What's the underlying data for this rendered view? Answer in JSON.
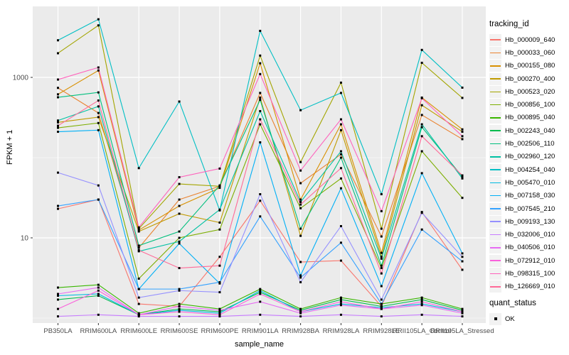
{
  "chart_data": {
    "type": "line",
    "title": "",
    "xlabel": "sample_name",
    "ylabel": "FPKM + 1",
    "y_scale": "log10",
    "ylim": [
      0.85,
      9000
    ],
    "grid": true,
    "panel_bg": "#EBEBEB",
    "grid_color": "#FFFFFF",
    "point_color": "#000000",
    "y_ticks": [
      {
        "label": "1000",
        "value": 1000
      },
      {
        "label": "10",
        "value": 10
      }
    ],
    "y_minor_breaks": [
      100,
      1
    ],
    "categories": [
      "PB350LA",
      "RRIM600LA",
      "RRIM600LE",
      "RRIM600SE",
      "RRIM600PE",
      "RRIM901LA",
      "RRIM928BA",
      "RRIM928LA",
      "RRIM928LE",
      "RRII105LA_Control",
      "RRII105LA_Stressed"
    ],
    "series": [
      {
        "name": "Hb_000009_640",
        "color": "#F8766D",
        "values": [
          23,
          30,
          1.5,
          1.4,
          5.8,
          29,
          5.0,
          5.2,
          1.4,
          21,
          4.0
        ]
      },
      {
        "name": "Hb_000033_060",
        "color": "#EA8331",
        "values": [
          740,
          360,
          7.5,
          30,
          44,
          640,
          48,
          110,
          10.4,
          340,
          170
        ]
      },
      {
        "name": "Hb_000155_080",
        "color": "#D89000",
        "values": [
          615,
          1220,
          12.5,
          25,
          42,
          1500,
          30,
          260,
          6.5,
          560,
          225
        ]
      },
      {
        "name": "Hb_000270_400",
        "color": "#C09B00",
        "values": [
          275,
          320,
          12,
          20,
          15.5,
          560,
          10.6,
          220,
          5.8,
          450,
          210
        ]
      },
      {
        "name": "Hb_000523_020",
        "color": "#A3A500",
        "values": [
          2000,
          4450,
          13,
          47,
          44,
          1870,
          88,
          860,
          13,
          1520,
          555
        ]
      },
      {
        "name": "Hb_000856_100",
        "color": "#7CAE00",
        "values": [
          235,
          270,
          3.1,
          10,
          12.7,
          260,
          23.4,
          55,
          4.2,
          120,
          31.5
        ]
      },
      {
        "name": "Hb_000895_040",
        "color": "#39B600",
        "values": [
          2.4,
          2.6,
          1.15,
          1.5,
          1.3,
          2.3,
          1.3,
          1.8,
          1.5,
          1.8,
          1.3
        ]
      },
      {
        "name": "Hb_002243_040",
        "color": "#00BB4E",
        "values": [
          1.7,
          1.9,
          1.1,
          1.3,
          1.2,
          2.1,
          1.25,
          1.7,
          1.4,
          1.7,
          1.25
        ]
      },
      {
        "name": "Hb_002506_110",
        "color": "#00BF7D",
        "values": [
          565,
          650,
          8,
          12,
          45,
          525,
          13,
          100,
          4.5,
          240,
          58
        ]
      },
      {
        "name": "Hb_002960_120",
        "color": "#00C1A3",
        "values": [
          290,
          435,
          6.8,
          9,
          22.5,
          380,
          28,
          120,
          5.5,
          260,
          55
        ]
      },
      {
        "name": "Hb_004254_040",
        "color": "#00BFC4",
        "values": [
          2900,
          5300,
          74,
          500,
          22,
          3800,
          390,
          640,
          35,
          2200,
          745
        ]
      },
      {
        "name": "Hb_005470_010",
        "color": "#00BAE0",
        "values": [
          1.9,
          2.0,
          1.1,
          1.25,
          1.15,
          2.2,
          1.2,
          1.5,
          1.35,
          1.5,
          1.2
        ]
      },
      {
        "name": "Hb_007158_030",
        "color": "#00B0F6",
        "values": [
          210,
          220,
          2.3,
          8.5,
          2.7,
          155,
          3.4,
          41.5,
          2.5,
          64,
          6.4
        ]
      },
      {
        "name": "Hb_007545_210",
        "color": "#35A2FF",
        "values": [
          25,
          30,
          2.3,
          2.3,
          2.8,
          18.5,
          3.2,
          8.7,
          1.5,
          12.7,
          5.1
        ]
      },
      {
        "name": "Hb_009193_130",
        "color": "#9590FF",
        "values": [
          65,
          45,
          1.8,
          2.2,
          2.1,
          35,
          2.8,
          14,
          1.7,
          20.5,
          5.8
        ]
      },
      {
        "name": "Hb_032006_010",
        "color": "#C77CFF",
        "values": [
          1.05,
          1.1,
          1.05,
          1.05,
          1.05,
          1.1,
          1.05,
          1.1,
          1.05,
          1.1,
          1.05
        ]
      },
      {
        "name": "Hb_040506_010",
        "color": "#E76BF3",
        "values": [
          2.0,
          2.4,
          1.1,
          1.4,
          1.25,
          1.6,
          1.15,
          1.45,
          1.3,
          1.45,
          1.15
        ]
      },
      {
        "name": "Hb_072912_010",
        "color": "#FA62DB",
        "values": [
          1.3,
          2.2,
          1.1,
          1.2,
          1.1,
          2.0,
          1.2,
          1.6,
          1.3,
          1.6,
          1.2
        ]
      },
      {
        "name": "Hb_098315_100",
        "color": "#FF62BC",
        "values": [
          940,
          1330,
          13.5,
          57,
          73,
          1100,
          69,
          300,
          21.5,
          550,
          185
        ]
      },
      {
        "name": "Hb_126669_010",
        "color": "#FF6A98",
        "values": [
          250,
          515,
          7,
          4.2,
          4.5,
          300,
          26,
          74,
          3.6,
          185,
          60
        ]
      }
    ]
  },
  "legend": {
    "title": "tracking_id"
  },
  "legend2": {
    "title": "quant_status",
    "items": [
      {
        "label": "OK"
      }
    ]
  }
}
